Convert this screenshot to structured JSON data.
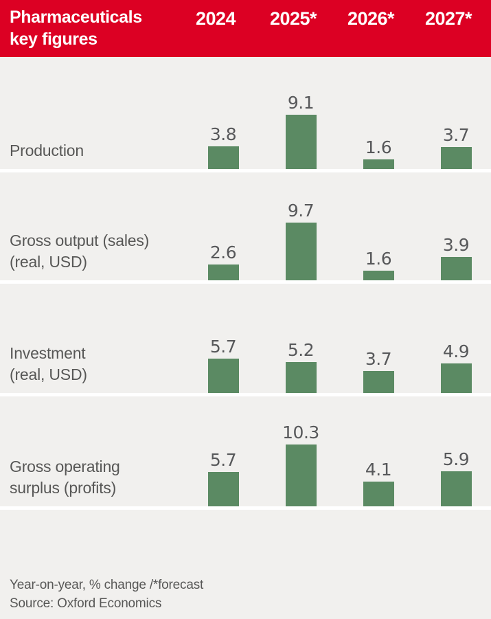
{
  "header": {
    "title_lines": [
      "Pharmaceuticals",
      "key figures"
    ],
    "columns": [
      "2024",
      "2025*",
      "2026*",
      "2027*"
    ]
  },
  "rows": [
    {
      "label_lines": [
        "Production"
      ],
      "values": [
        "3.8",
        "9.1",
        "1.6",
        "3.7"
      ]
    },
    {
      "label_lines": [
        "Gross output (sales)",
        "(real, USD)"
      ],
      "values": [
        "2.6",
        "9.7",
        "1.6",
        "3.9"
      ]
    },
    {
      "label_lines": [
        "Investment",
        "(real, USD)"
      ],
      "values": [
        "5.7",
        "5.2",
        "3.7",
        "4.9"
      ]
    },
    {
      "label_lines": [
        "Gross operating",
        "surplus (profits)"
      ],
      "values": [
        "5.7",
        "10.3",
        "4.1",
        "5.9"
      ]
    }
  ],
  "footer": {
    "note": "Year-on-year, % change /*forecast",
    "source": "Source: Oxford Economics"
  },
  "colors": {
    "header_bg": "#dc0023",
    "header_text": "#ffffff",
    "bar": "#5b8a63",
    "background": "#f1f0ee",
    "text": "#575756",
    "separator": "#ffffff"
  },
  "chart_data": {
    "type": "bar",
    "categories": [
      "2024",
      "2025*",
      "2026*",
      "2027*"
    ],
    "series": [
      {
        "name": "Production",
        "values": [
          3.8,
          9.1,
          1.6,
          3.7
        ]
      },
      {
        "name": "Gross output (sales) (real, USD)",
        "values": [
          2.6,
          9.7,
          1.6,
          3.9
        ]
      },
      {
        "name": "Investment (real, USD)",
        "values": [
          5.7,
          5.2,
          3.7,
          4.9
        ]
      },
      {
        "name": "Gross operating surplus (profits)",
        "values": [
          5.7,
          10.3,
          4.1,
          5.9
        ]
      }
    ],
    "title": "Pharmaceuticals key figures",
    "xlabel": "",
    "ylabel": "Year-on-year, % change",
    "ylim": [
      0,
      11
    ],
    "grid": false,
    "legend_position": "none",
    "note": "Year-on-year, % change /*forecast",
    "source": "Source: Oxford Economics"
  }
}
